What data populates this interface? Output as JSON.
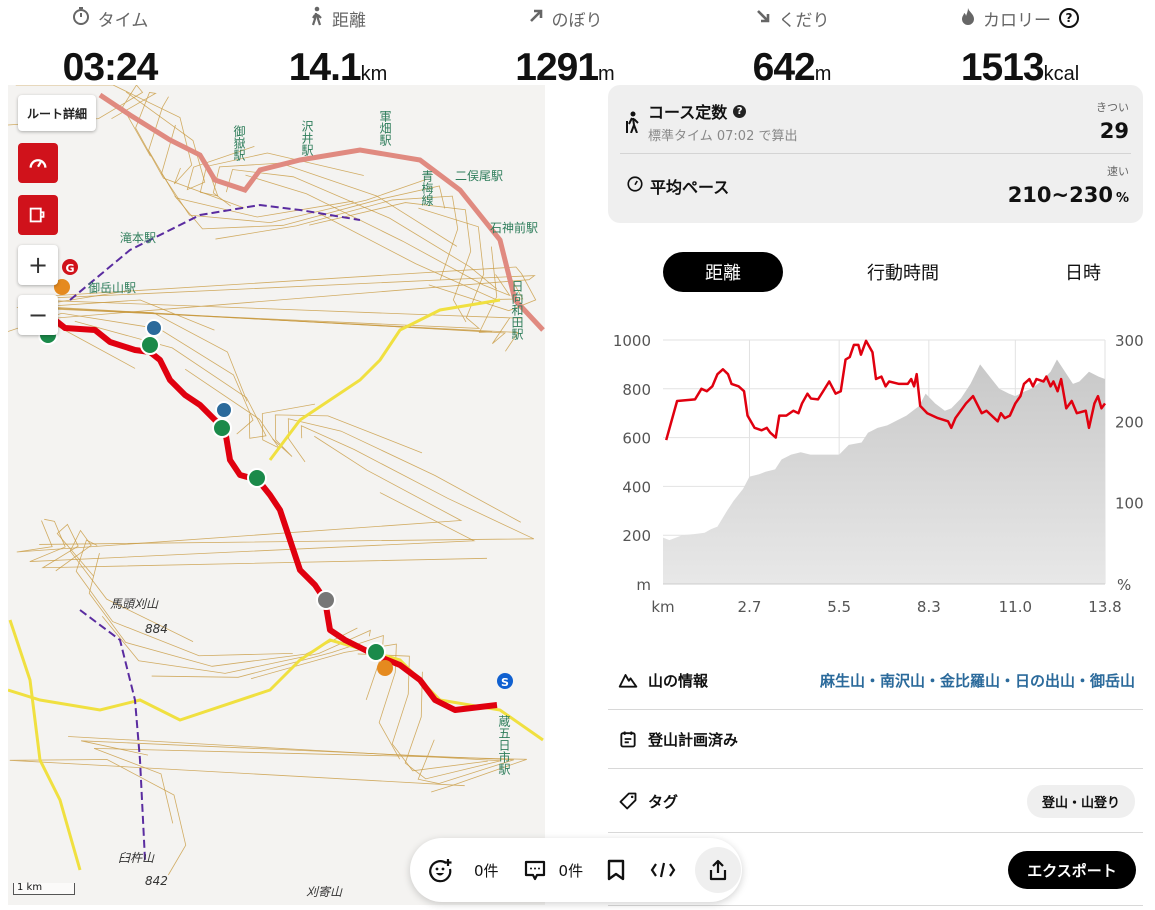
{
  "stats": [
    {
      "icon": "stopwatch-icon",
      "label": "タイム",
      "value": "03:24",
      "unit": ""
    },
    {
      "icon": "walker-icon",
      "label": "距離",
      "value": "14.1",
      "unit": "km"
    },
    {
      "icon": "arrow-up-right-icon",
      "label": "のぼり",
      "value": "1291",
      "unit": "m"
    },
    {
      "icon": "arrow-down-right-icon",
      "label": "くだり",
      "value": "642",
      "unit": "m"
    },
    {
      "icon": "flame-icon",
      "label": "カロリー",
      "value": "1513",
      "unit": "kcal"
    }
  ],
  "map": {
    "route_detail_label": "ルート詳細",
    "zoom_in": "+",
    "zoom_out": "−",
    "scale": "1 km",
    "labels": [
      "沢井駅",
      "軍畑駅",
      "御嶽駅",
      "二俣尾駅",
      "青梅線",
      "石神前駅",
      "日向和田駅",
      "滝本駅",
      "御岳山駅",
      "馬頭刈山",
      "884",
      "臼杵山",
      "842",
      "刈寄山",
      "蔵五日市駅"
    ],
    "markers": {
      "goal": "G",
      "start": "S"
    },
    "route_color": "#e0000f"
  },
  "course": {
    "title": "コース定数",
    "sub": "標準タイム 07:02 で算出",
    "rating_label": "きつい",
    "value": "29",
    "pace_title": "平均ペース",
    "pace_label": "速い",
    "pace_value": "210~230",
    "pace_unit": "%"
  },
  "tabs": [
    {
      "label": "距離",
      "selected": true
    },
    {
      "label": "行動時間",
      "selected": false
    },
    {
      "label": "日時",
      "selected": false
    }
  ],
  "chart_data": {
    "type": "area+line",
    "xlabel": "km",
    "ylabel_left": "m",
    "ylabel_right": "%",
    "xlim": [
      0,
      13.8
    ],
    "ylim_left": [
      0,
      1000
    ],
    "ylim_right": [
      0,
      300
    ],
    "xticks": [
      "2.7",
      "5.5",
      "8.3",
      "11.0",
      "13.8"
    ],
    "yticks_left": [
      "1000",
      "800",
      "600",
      "400",
      "200"
    ],
    "yticks_right": [
      "300",
      "200",
      "100"
    ],
    "grid": true,
    "elevation": [
      [
        0,
        190
      ],
      [
        0.2,
        180
      ],
      [
        0.6,
        200
      ],
      [
        1.0,
        205
      ],
      [
        1.3,
        210
      ],
      [
        1.5,
        225
      ],
      [
        1.7,
        235
      ],
      [
        2.0,
        300
      ],
      [
        2.2,
        340
      ],
      [
        2.5,
        390
      ],
      [
        2.7,
        440
      ],
      [
        3.0,
        450
      ],
      [
        3.2,
        460
      ],
      [
        3.5,
        470
      ],
      [
        3.7,
        510
      ],
      [
        4.0,
        530
      ],
      [
        4.3,
        540
      ],
      [
        4.6,
        530
      ],
      [
        5.0,
        530
      ],
      [
        5.5,
        530
      ],
      [
        5.8,
        570
      ],
      [
        6.2,
        580
      ],
      [
        6.4,
        620
      ],
      [
        6.7,
        640
      ],
      [
        7.0,
        650
      ],
      [
        7.3,
        670
      ],
      [
        7.6,
        690
      ],
      [
        8.0,
        730
      ],
      [
        8.2,
        780
      ],
      [
        8.5,
        740
      ],
      [
        8.8,
        710
      ],
      [
        9.0,
        720
      ],
      [
        9.3,
        760
      ],
      [
        9.6,
        820
      ],
      [
        9.9,
        900
      ],
      [
        10.2,
        850
      ],
      [
        10.5,
        800
      ],
      [
        10.8,
        780
      ],
      [
        11.0,
        770
      ],
      [
        11.3,
        790
      ],
      [
        11.5,
        800
      ],
      [
        11.8,
        830
      ],
      [
        12.1,
        870
      ],
      [
        12.3,
        920
      ],
      [
        12.5,
        880
      ],
      [
        12.8,
        820
      ],
      [
        13.0,
        830
      ],
      [
        13.3,
        870
      ],
      [
        13.6,
        850
      ],
      [
        13.8,
        840
      ]
    ],
    "pace_percent": [
      [
        0.1,
        177
      ],
      [
        0.44,
        225
      ],
      [
        1.0,
        227
      ],
      [
        1.2,
        240
      ],
      [
        1.37,
        237
      ],
      [
        1.54,
        243
      ],
      [
        1.7,
        258
      ],
      [
        1.87,
        264
      ],
      [
        2.03,
        258
      ],
      [
        2.14,
        246
      ],
      [
        2.36,
        243
      ],
      [
        2.53,
        237
      ],
      [
        2.64,
        207
      ],
      [
        2.86,
        192
      ],
      [
        3.08,
        189
      ],
      [
        3.24,
        192
      ],
      [
        3.35,
        186
      ],
      [
        3.52,
        180
      ],
      [
        3.63,
        207
      ],
      [
        3.85,
        207
      ],
      [
        4.07,
        213
      ],
      [
        4.23,
        210
      ],
      [
        4.34,
        222
      ],
      [
        4.51,
        234
      ],
      [
        4.62,
        228
      ],
      [
        4.84,
        227
      ],
      [
        5.0,
        237
      ],
      [
        5.19,
        249
      ],
      [
        5.39,
        234
      ],
      [
        5.55,
        237
      ],
      [
        5.7,
        276
      ],
      [
        5.83,
        279
      ],
      [
        5.96,
        294
      ],
      [
        6.1,
        294
      ],
      [
        6.18,
        282
      ],
      [
        6.34,
        299
      ],
      [
        6.54,
        285
      ],
      [
        6.65,
        252
      ],
      [
        6.82,
        255
      ],
      [
        6.95,
        243
      ],
      [
        7.06,
        249
      ],
      [
        7.37,
        246
      ],
      [
        7.64,
        246
      ],
      [
        7.75,
        252
      ],
      [
        7.84,
        243
      ],
      [
        7.92,
        258
      ],
      [
        8.03,
        219
      ],
      [
        8.25,
        210
      ],
      [
        8.58,
        204
      ],
      [
        8.9,
        200
      ],
      [
        9.0,
        192
      ],
      [
        9.13,
        204
      ],
      [
        9.46,
        222
      ],
      [
        9.68,
        231
      ],
      [
        9.95,
        210
      ],
      [
        10.1,
        213
      ],
      [
        10.45,
        200
      ],
      [
        10.55,
        210
      ],
      [
        10.67,
        204
      ],
      [
        10.83,
        207
      ],
      [
        11.0,
        222
      ],
      [
        11.16,
        231
      ],
      [
        11.27,
        246
      ],
      [
        11.44,
        252
      ],
      [
        11.55,
        243
      ],
      [
        11.66,
        252
      ],
      [
        11.88,
        249
      ],
      [
        11.97,
        255
      ],
      [
        12.1,
        243
      ],
      [
        12.19,
        249
      ],
      [
        12.32,
        237
      ],
      [
        12.43,
        252
      ],
      [
        12.59,
        216
      ],
      [
        12.76,
        225
      ],
      [
        12.92,
        210
      ],
      [
        13.2,
        213
      ],
      [
        13.3,
        192
      ],
      [
        13.47,
        222
      ],
      [
        13.58,
        231
      ],
      [
        13.69,
        216
      ],
      [
        13.8,
        222
      ]
    ],
    "colors": {
      "elevation": "#d4d4d4",
      "pace": "#e0000f"
    }
  },
  "info": {
    "mountain_label": "山の情報",
    "mountains": "麻生山・南沢山・金比羅山・日の出山・御岳山",
    "plan_label": "登山計画済み",
    "tag_label": "タグ",
    "tag": "登山・山登り",
    "export": "エクスポート"
  },
  "bar": {
    "reactions": "0件",
    "comments": "0件"
  },
  "colors": {
    "accent": "#d0121b",
    "link": "#2b6a9b"
  }
}
